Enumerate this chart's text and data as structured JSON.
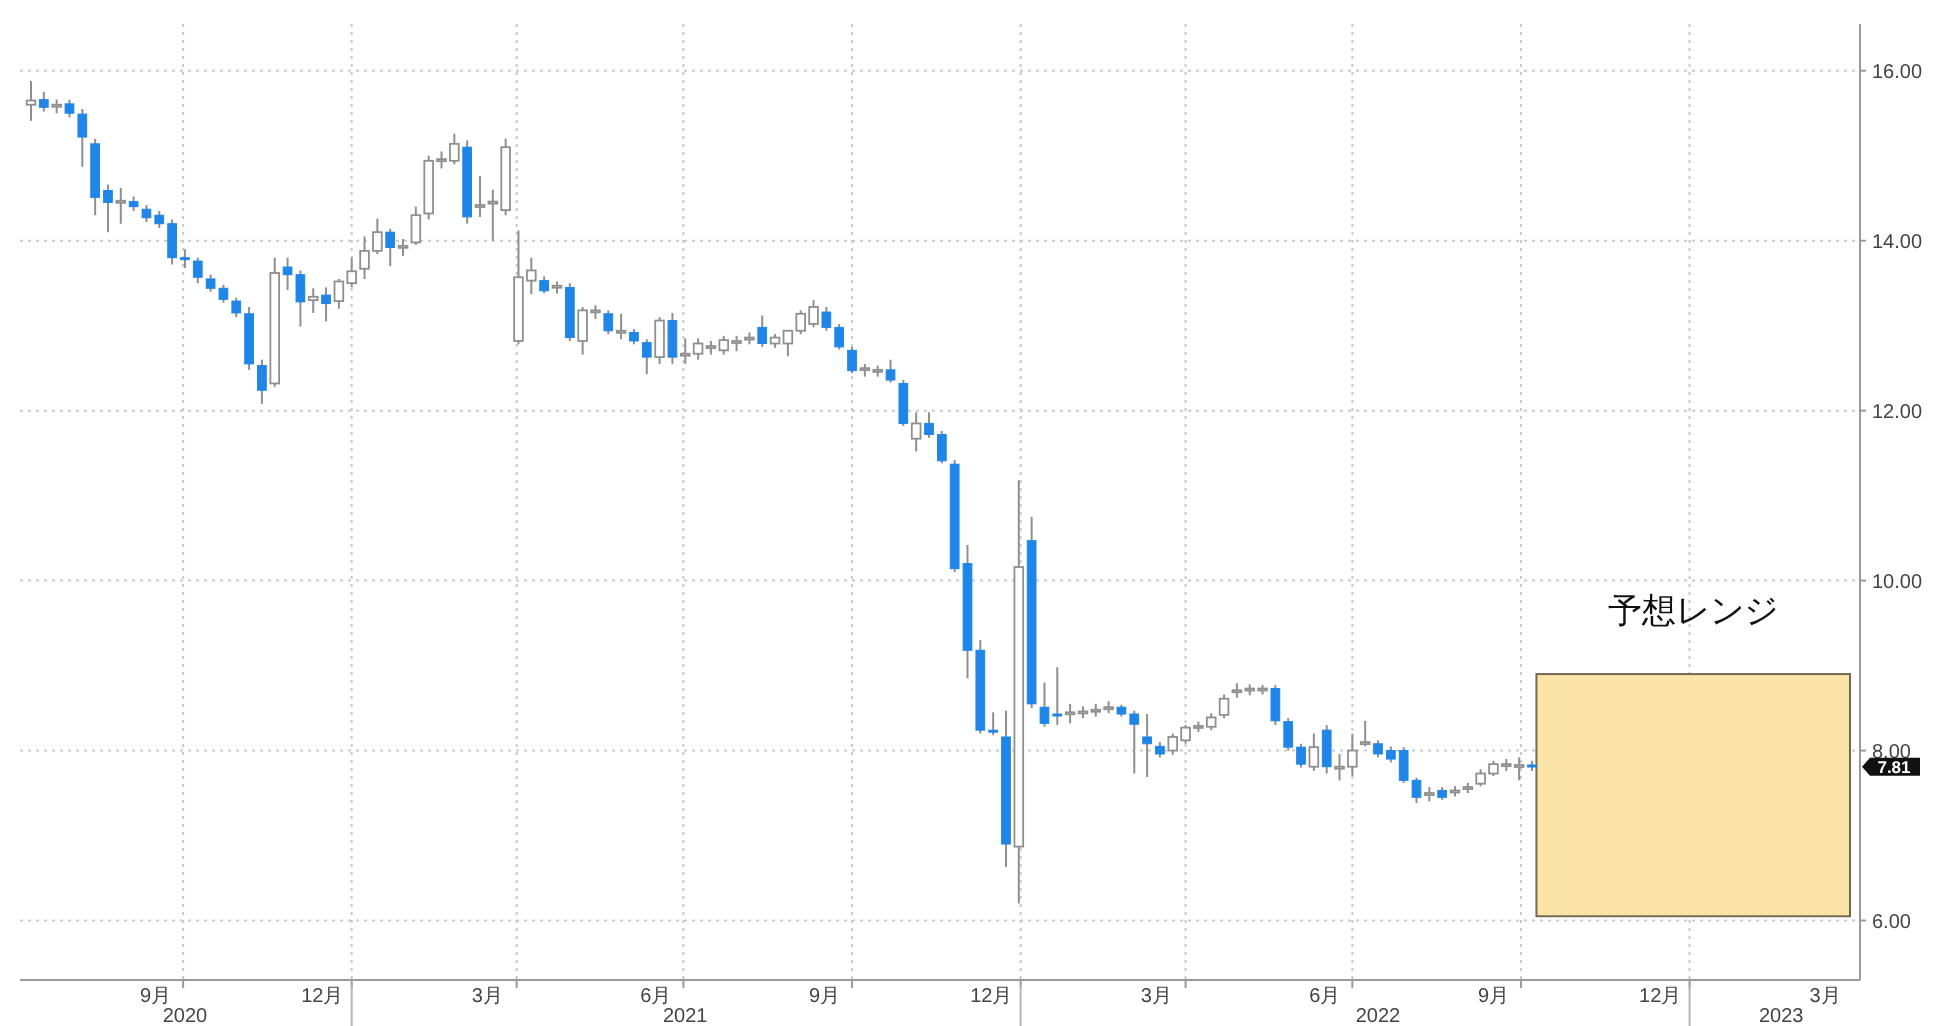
{
  "chart_data": {
    "type": "candlestick",
    "xlim": [
      "2020-07-04",
      "2023-04-04"
    ],
    "xticks": [
      {
        "value": "2020-09-16",
        "label": "9月"
      },
      {
        "value": "2020-10-01",
        "label": null
      },
      {
        "value": "2020-12-16",
        "label": "12月"
      },
      {
        "value": "2021-01-01",
        "label": null
      },
      {
        "value": "2021-03-16",
        "label": "3月"
      },
      {
        "value": "2021-04-01",
        "label": null
      },
      {
        "value": "2021-06-16",
        "label": "6月"
      },
      {
        "value": "2021-07-01",
        "label": null
      },
      {
        "value": "2021-09-16",
        "label": "9月"
      },
      {
        "value": "2021-10-01",
        "label": null
      },
      {
        "value": "2021-12-16",
        "label": "12月"
      },
      {
        "value": "2022-01-01",
        "label": null
      },
      {
        "value": "2022-03-16",
        "label": "3月"
      },
      {
        "value": "2022-04-01",
        "label": null
      },
      {
        "value": "2022-06-16",
        "label": "6月"
      },
      {
        "value": "2022-07-01",
        "label": null
      },
      {
        "value": "2022-09-16",
        "label": "9月"
      },
      {
        "value": "2022-10-01",
        "label": null
      },
      {
        "value": "2022-12-16",
        "label": "12月"
      },
      {
        "value": "2023-01-01",
        "label": null
      },
      {
        "value": "2023-03-16",
        "label": "3月"
      }
    ],
    "x2lim": [
      "2020-07-04",
      "2023-04-04"
    ],
    "x2ticks": [
      {
        "value": "2020-10-02",
        "label": "2020"
      },
      {
        "value": "2021-01-01",
        "label": null
      },
      {
        "value": "2021-07-02",
        "label": "2021"
      },
      {
        "value": "2022-01-01",
        "label": null
      },
      {
        "value": "2022-07-15",
        "label": "2022"
      },
      {
        "value": "2023-01-01",
        "label": null
      },
      {
        "value": "2023-02-20",
        "label": "2023"
      }
    ],
    "ylim": [
      5.3,
      16.55
    ],
    "yticks": [
      {
        "value": 6,
        "label": "6.00"
      },
      {
        "value": 8,
        "label": "8.00"
      },
      {
        "value": 10,
        "label": "10.00"
      },
      {
        "value": 12,
        "label": "12.00"
      },
      {
        "value": 14,
        "label": "14.00"
      },
      {
        "value": 16,
        "label": "16.00"
      }
    ],
    "grid": true,
    "annotations": [
      {
        "text": "7.81",
        "y": 7.81
      }
    ],
    "bands": [
      {
        "axis": "y",
        "from": 6.05,
        "to": 8.9,
        "label": "予想レンジ",
        "color": "#fce4a8"
      }
    ],
    "series": [
      {
        "x": [
          "2020-07-10",
          "2020-07-17",
          "2020-07-24",
          "2020-07-31",
          "2020-08-07",
          "2020-08-14",
          "2020-08-21",
          "2020-08-28",
          "2020-09-04",
          "2020-09-11",
          "2020-09-18",
          "2020-09-25",
          "2020-10-02",
          "2020-10-09",
          "2020-10-16",
          "2020-10-23",
          "2020-10-30",
          "2020-11-06",
          "2020-11-13",
          "2020-11-20",
          "2020-11-27",
          "2020-12-04",
          "2020-12-11",
          "2020-12-18",
          "2020-12-25",
          "2021-01-01",
          "2021-01-08",
          "2021-01-15",
          "2021-01-22",
          "2021-01-29",
          "2021-02-05",
          "2021-02-12",
          "2021-02-19",
          "2021-02-26",
          "2021-03-05",
          "2021-03-12",
          "2021-03-19",
          "2021-03-26",
          "2021-04-02",
          "2021-04-09",
          "2021-04-16",
          "2021-04-23",
          "2021-04-30",
          "2021-05-07",
          "2021-05-14",
          "2021-05-21",
          "2021-05-28",
          "2021-06-04",
          "2021-06-11",
          "2021-06-18",
          "2021-06-25",
          "2021-07-02",
          "2021-07-09",
          "2021-07-16",
          "2021-07-23",
          "2021-07-30",
          "2021-08-06",
          "2021-08-13",
          "2021-08-20",
          "2021-08-27",
          "2021-09-03",
          "2021-09-10",
          "2021-09-17",
          "2021-09-24",
          "2021-10-01",
          "2021-10-08",
          "2021-10-15",
          "2021-10-22",
          "2021-10-29",
          "2021-11-05",
          "2021-11-12",
          "2021-11-19",
          "2021-11-26",
          "2021-12-03",
          "2021-12-10",
          "2021-12-17",
          "2021-12-24",
          "2021-12-31",
          "2022-01-07",
          "2022-01-14",
          "2022-01-21",
          "2022-01-28",
          "2022-02-04",
          "2022-02-11",
          "2022-02-18",
          "2022-02-25",
          "2022-03-04",
          "2022-03-11",
          "2022-03-18",
          "2022-03-25",
          "2022-04-01",
          "2022-04-08",
          "2022-04-15",
          "2022-04-22",
          "2022-04-29",
          "2022-05-06",
          "2022-05-13",
          "2022-05-20",
          "2022-05-27",
          "2022-06-03",
          "2022-06-10",
          "2022-06-17",
          "2022-06-24",
          "2022-07-01",
          "2022-07-08",
          "2022-07-15",
          "2022-07-22",
          "2022-07-29",
          "2022-08-05",
          "2022-08-12",
          "2022-08-19",
          "2022-08-26",
          "2022-09-02",
          "2022-09-09",
          "2022-09-16",
          "2022-09-23",
          "2022-09-30",
          "2022-10-07"
        ],
        "ohlc": [
          [
            15.6,
            15.88,
            15.41,
            15.65
          ],
          [
            15.66,
            15.75,
            15.52,
            15.57
          ],
          [
            15.58,
            15.66,
            15.5,
            15.6
          ],
          [
            15.61,
            15.66,
            15.45,
            15.5
          ],
          [
            15.49,
            15.55,
            14.87,
            15.22
          ],
          [
            15.14,
            15.2,
            14.3,
            14.51
          ],
          [
            14.59,
            14.66,
            14.1,
            14.45
          ],
          [
            14.45,
            14.62,
            14.2,
            14.47
          ],
          [
            14.46,
            14.52,
            14.35,
            14.4
          ],
          [
            14.37,
            14.42,
            14.22,
            14.27
          ],
          [
            14.3,
            14.35,
            14.15,
            14.2
          ],
          [
            14.2,
            14.25,
            13.72,
            13.8
          ],
          [
            13.8,
            13.9,
            13.68,
            13.78
          ],
          [
            13.76,
            13.8,
            13.5,
            13.57
          ],
          [
            13.55,
            13.6,
            13.4,
            13.44
          ],
          [
            13.44,
            13.48,
            13.27,
            13.31
          ],
          [
            13.29,
            13.33,
            13.1,
            13.15
          ],
          [
            13.14,
            13.22,
            12.48,
            12.55
          ],
          [
            12.53,
            12.6,
            12.08,
            12.24
          ],
          [
            12.32,
            13.8,
            12.28,
            13.62
          ],
          [
            13.69,
            13.8,
            13.42,
            13.6
          ],
          [
            13.6,
            13.65,
            12.99,
            13.28
          ],
          [
            13.3,
            13.44,
            13.15,
            13.34
          ],
          [
            13.36,
            13.45,
            13.05,
            13.26
          ],
          [
            13.29,
            13.55,
            13.2,
            13.52
          ],
          [
            13.5,
            13.8,
            13.45,
            13.64
          ],
          [
            13.67,
            14.05,
            13.55,
            13.88
          ],
          [
            13.88,
            14.26,
            13.84,
            14.1
          ],
          [
            14.1,
            14.14,
            13.7,
            13.92
          ],
          [
            13.92,
            14.02,
            13.82,
            13.94
          ],
          [
            13.98,
            14.4,
            13.95,
            14.3
          ],
          [
            14.32,
            15.0,
            14.25,
            14.94
          ],
          [
            14.94,
            15.05,
            14.85,
            14.96
          ],
          [
            14.94,
            15.26,
            14.9,
            15.14
          ],
          [
            15.1,
            15.18,
            14.2,
            14.28
          ],
          [
            14.4,
            14.76,
            14.28,
            14.42
          ],
          [
            14.44,
            14.6,
            14.0,
            14.46
          ],
          [
            14.36,
            15.2,
            14.3,
            15.1
          ],
          [
            12.82,
            14.12,
            12.78,
            13.57
          ],
          [
            13.53,
            13.8,
            13.37,
            13.65
          ],
          [
            13.53,
            13.58,
            13.38,
            13.41
          ],
          [
            13.45,
            13.52,
            13.38,
            13.47
          ],
          [
            13.45,
            13.5,
            12.82,
            12.86
          ],
          [
            12.82,
            13.22,
            12.66,
            13.18
          ],
          [
            13.16,
            13.24,
            13.08,
            13.18
          ],
          [
            13.14,
            13.18,
            12.9,
            12.94
          ],
          [
            12.92,
            13.14,
            12.84,
            12.94
          ],
          [
            12.92,
            12.96,
            12.78,
            12.82
          ],
          [
            12.8,
            12.84,
            12.43,
            12.63
          ],
          [
            12.63,
            13.1,
            12.55,
            13.06
          ],
          [
            13.06,
            13.15,
            12.55,
            12.63
          ],
          [
            12.65,
            12.85,
            12.55,
            12.67
          ],
          [
            12.67,
            12.85,
            12.6,
            12.79
          ],
          [
            12.74,
            12.82,
            12.66,
            12.76
          ],
          [
            12.71,
            12.88,
            12.66,
            12.83
          ],
          [
            12.8,
            12.88,
            12.7,
            12.82
          ],
          [
            12.84,
            12.92,
            12.78,
            12.86
          ],
          [
            12.98,
            13.12,
            12.75,
            12.79
          ],
          [
            12.79,
            12.9,
            12.74,
            12.86
          ],
          [
            12.79,
            12.95,
            12.64,
            12.94
          ],
          [
            12.94,
            13.18,
            12.9,
            13.14
          ],
          [
            13.02,
            13.3,
            12.98,
            13.22
          ],
          [
            13.16,
            13.22,
            12.94,
            12.98
          ],
          [
            12.98,
            13.02,
            12.72,
            12.75
          ],
          [
            12.71,
            12.75,
            12.44,
            12.47
          ],
          [
            12.48,
            12.55,
            12.4,
            12.5
          ],
          [
            12.47,
            12.53,
            12.4,
            12.48
          ],
          [
            12.48,
            12.6,
            12.33,
            12.36
          ],
          [
            12.32,
            12.36,
            11.82,
            11.85
          ],
          [
            11.67,
            11.98,
            11.52,
            11.85
          ],
          [
            11.85,
            11.98,
            11.68,
            11.72
          ],
          [
            11.72,
            11.76,
            11.38,
            11.41
          ],
          [
            11.37,
            11.42,
            10.1,
            10.14
          ],
          [
            10.2,
            10.42,
            8.85,
            9.18
          ],
          [
            9.18,
            9.3,
            8.2,
            8.24
          ],
          [
            8.24,
            8.45,
            8.18,
            8.22
          ],
          [
            8.16,
            8.47,
            6.63,
            6.9
          ],
          [
            6.87,
            11.18,
            6.2,
            10.16
          ],
          [
            10.47,
            10.75,
            8.5,
            8.55
          ],
          [
            8.51,
            8.8,
            8.28,
            8.32
          ],
          [
            8.43,
            8.98,
            8.3,
            8.42
          ],
          [
            8.43,
            8.55,
            8.32,
            8.45
          ],
          [
            8.45,
            8.52,
            8.38,
            8.46
          ],
          [
            8.46,
            8.55,
            8.4,
            8.48
          ],
          [
            8.5,
            8.58,
            8.44,
            8.51
          ],
          [
            8.51,
            8.54,
            8.4,
            8.43
          ],
          [
            8.43,
            8.47,
            7.73,
            8.31
          ],
          [
            8.16,
            8.43,
            7.69,
            8.08
          ],
          [
            8.05,
            8.1,
            7.92,
            7.96
          ],
          [
            8.0,
            8.2,
            7.95,
            8.16
          ],
          [
            8.12,
            8.3,
            8.08,
            8.27
          ],
          [
            8.27,
            8.34,
            8.22,
            8.29
          ],
          [
            8.28,
            8.44,
            8.24,
            8.39
          ],
          [
            8.42,
            8.66,
            8.38,
            8.61
          ],
          [
            8.7,
            8.79,
            8.62,
            8.71
          ],
          [
            8.72,
            8.78,
            8.65,
            8.73
          ],
          [
            8.72,
            8.77,
            8.66,
            8.73
          ],
          [
            8.73,
            8.77,
            8.3,
            8.35
          ],
          [
            8.34,
            8.38,
            8.0,
            8.04
          ],
          [
            8.04,
            8.08,
            7.8,
            7.84
          ],
          [
            7.81,
            8.2,
            7.76,
            8.04
          ],
          [
            8.24,
            8.3,
            7.73,
            7.81
          ],
          [
            7.8,
            7.96,
            7.65,
            7.81
          ],
          [
            7.81,
            8.2,
            7.7,
            8.0
          ],
          [
            8.08,
            8.35,
            8.05,
            8.1
          ],
          [
            8.08,
            8.12,
            7.92,
            7.96
          ],
          [
            8.0,
            8.05,
            7.86,
            7.9
          ],
          [
            8.0,
            8.04,
            7.62,
            7.65
          ],
          [
            7.65,
            7.68,
            7.38,
            7.45
          ],
          [
            7.48,
            7.57,
            7.4,
            7.5
          ],
          [
            7.53,
            7.57,
            7.42,
            7.45
          ],
          [
            7.52,
            7.58,
            7.46,
            7.53
          ],
          [
            7.56,
            7.62,
            7.5,
            7.57
          ],
          [
            7.61,
            7.78,
            7.58,
            7.73
          ],
          [
            7.73,
            7.88,
            7.7,
            7.84
          ],
          [
            7.83,
            7.9,
            7.76,
            7.84
          ],
          [
            7.82,
            7.92,
            7.65,
            7.83
          ],
          [
            7.83,
            7.88,
            7.76,
            7.81
          ]
        ],
        "colors": [
          "#ffffff",
          "#1f86e8",
          "#ffffff",
          "#1f86e8",
          "#1f86e8",
          "#1f86e8",
          "#1f86e8",
          "#ffffff",
          "#1f86e8",
          "#1f86e8",
          "#1f86e8",
          "#1f86e8",
          "#1f86e8",
          "#1f86e8",
          "#1f86e8",
          "#1f86e8",
          "#1f86e8",
          "#1f86e8",
          "#1f86e8",
          "#ffffff",
          "#1f86e8",
          "#1f86e8",
          "#ffffff",
          "#1f86e8",
          "#ffffff",
          "#ffffff",
          "#ffffff",
          "#ffffff",
          "#1f86e8",
          "#ffffff",
          "#ffffff",
          "#ffffff",
          "#ffffff",
          "#ffffff",
          "#1f86e8",
          "#ffffff",
          "#ffffff",
          "#ffffff",
          "#ffffff",
          "#ffffff",
          "#1f86e8",
          "#ffffff",
          "#1f86e8",
          "#ffffff",
          "#ffffff",
          "#1f86e8",
          "#ffffff",
          "#1f86e8",
          "#1f86e8",
          "#ffffff",
          "#1f86e8",
          "#ffffff",
          "#ffffff",
          "#ffffff",
          "#ffffff",
          "#ffffff",
          "#ffffff",
          "#1f86e8",
          "#ffffff",
          "#ffffff",
          "#ffffff",
          "#ffffff",
          "#1f86e8",
          "#1f86e8",
          "#1f86e8",
          "#ffffff",
          "#ffffff",
          "#1f86e8",
          "#1f86e8",
          "#ffffff",
          "#1f86e8",
          "#1f86e8",
          "#1f86e8",
          "#1f86e8",
          "#1f86e8",
          "#1f86e8",
          "#1f86e8",
          "#ffffff",
          "#1f86e8",
          "#1f86e8",
          "#1f86e8",
          "#ffffff",
          "#ffffff",
          "#ffffff",
          "#ffffff",
          "#1f86e8",
          "#1f86e8",
          "#1f86e8",
          "#1f86e8",
          "#ffffff",
          "#ffffff",
          "#ffffff",
          "#ffffff",
          "#ffffff",
          "#ffffff",
          "#ffffff",
          "#ffffff",
          "#1f86e8",
          "#1f86e8",
          "#1f86e8",
          "#ffffff",
          "#1f86e8",
          "#ffffff",
          "#ffffff",
          "#ffffff",
          "#1f86e8",
          "#1f86e8",
          "#1f86e8",
          "#1f86e8",
          "#ffffff",
          "#1f86e8",
          "#ffffff",
          "#ffffff",
          "#ffffff",
          "#ffffff",
          "#ffffff",
          "#ffffff",
          "#1f86e8"
        ]
      }
    ]
  }
}
